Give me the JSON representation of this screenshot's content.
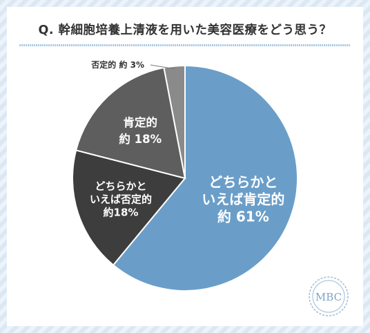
{
  "title": "Q. 幹細胞培養上清液を用いた美容医療をどう思う？",
  "logo_text": "MBC",
  "colors": {
    "slice_61": "#6a9ec9",
    "slice_18a": "#3d3d3d",
    "slice_18b": "#5e5e5e",
    "slice_3": "#8a8a8a",
    "stripe": "#dbe8f4"
  },
  "chart_data": {
    "type": "pie",
    "start": "12 o'clock",
    "direction": "clockwise",
    "slices": [
      {
        "label_lines": [
          "どちらかと",
          "いえば肯定的"
        ],
        "value_text": "約 61%",
        "value": 61
      },
      {
        "label_lines": [
          "どちらかと",
          "いえば否定的"
        ],
        "value_text": "約18%",
        "value": 18
      },
      {
        "label_lines": [
          "肯定的"
        ],
        "value_text": "約 18%",
        "value": 18
      },
      {
        "label_lines": [
          "否定的"
        ],
        "value_text": "約 3%",
        "value": 3
      }
    ]
  }
}
